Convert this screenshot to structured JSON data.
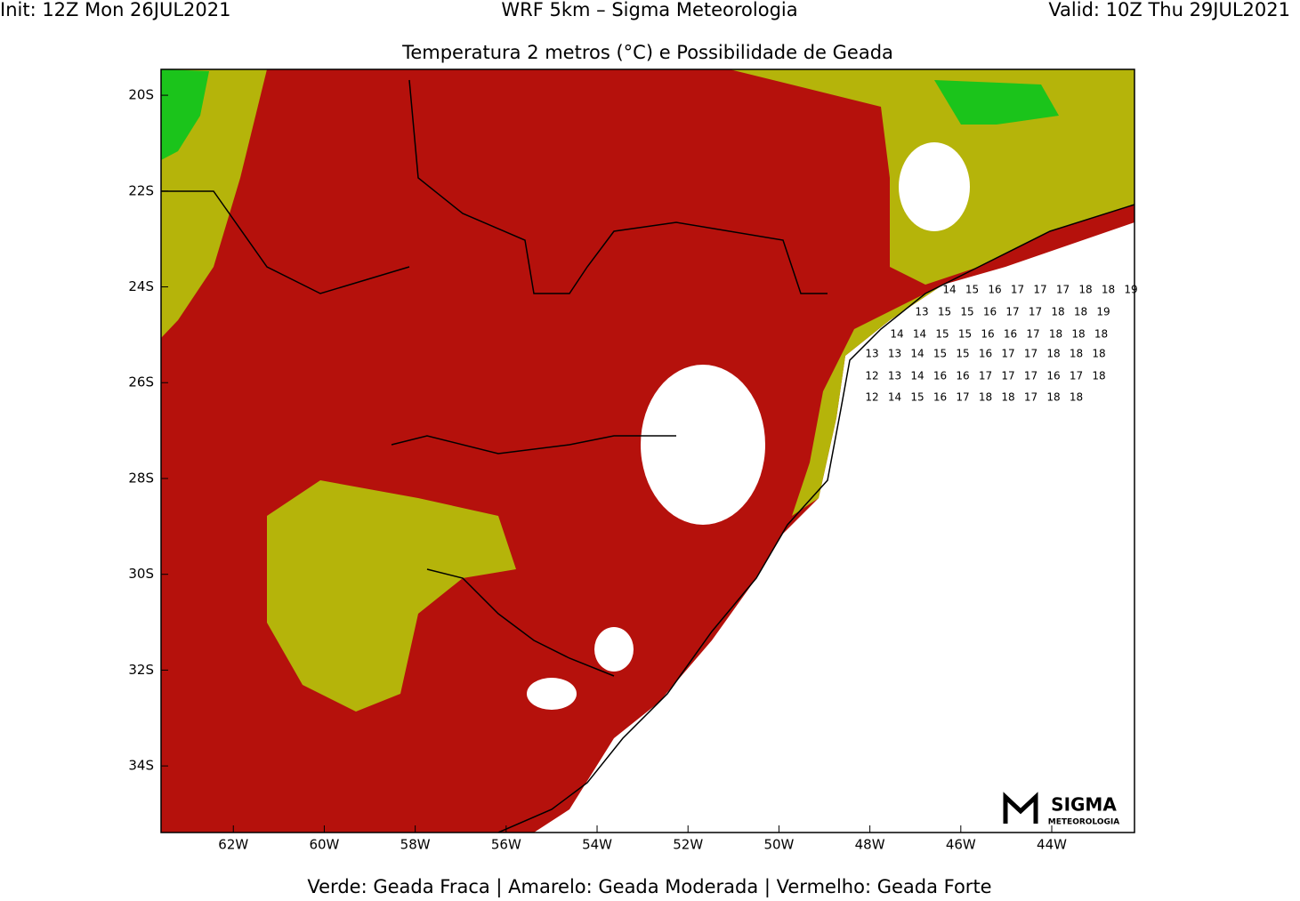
{
  "header": {
    "init": "Init: 12Z Mon 26JUL2021",
    "model": "WRF 5km – Sigma Meteorologia",
    "valid": "Valid: 10Z Thu 29JUL2021"
  },
  "title": "Temperatura 2 metros (°C) e Possibilidade de Geada",
  "map": {
    "lonlim": [
      -63.59,
      -42.18
    ],
    "latlim": [
      -19.46,
      -35.39
    ],
    "lonticks": [
      {
        "value": -62,
        "label": "62W"
      },
      {
        "value": -60,
        "label": "60W"
      },
      {
        "value": -58,
        "label": "58W"
      },
      {
        "value": -56,
        "label": "56W"
      },
      {
        "value": -54,
        "label": "54W"
      },
      {
        "value": -52,
        "label": "52W"
      },
      {
        "value": -50,
        "label": "50W"
      },
      {
        "value": -48,
        "label": "48W"
      },
      {
        "value": -46,
        "label": "46W"
      },
      {
        "value": -44,
        "label": "44W"
      }
    ],
    "latticks": [
      {
        "value": -20,
        "label": "20S"
      },
      {
        "value": -22,
        "label": "22S"
      },
      {
        "value": -24,
        "label": "24S"
      },
      {
        "value": -26,
        "label": "26S"
      },
      {
        "value": -28,
        "label": "28S"
      },
      {
        "value": -30,
        "label": "30S"
      },
      {
        "value": -32,
        "label": "32S"
      },
      {
        "value": -34,
        "label": "34S"
      }
    ],
    "grid_values": [
      [
        14,
        15,
        16,
        17,
        17,
        17,
        18,
        18,
        19
      ],
      [
        13,
        15,
        15,
        16,
        17,
        17,
        18,
        18,
        19
      ],
      [
        14,
        14,
        15,
        15,
        16,
        16,
        17,
        18,
        18,
        18
      ],
      [
        13,
        13,
        14,
        15,
        15,
        16,
        17,
        17,
        18,
        18,
        18
      ],
      [
        12,
        13,
        14,
        16,
        16,
        17,
        17,
        17,
        16,
        17,
        18
      ],
      [
        12,
        14,
        15,
        16,
        17,
        18,
        18,
        17,
        18,
        18
      ]
    ]
  },
  "legend": "Verde: Geada Fraca | Amarelo: Geada Moderada | Vermelho: Geada Forte",
  "logo": {
    "name": "SIGMA",
    "sub": "METEOROLOGIA"
  }
}
